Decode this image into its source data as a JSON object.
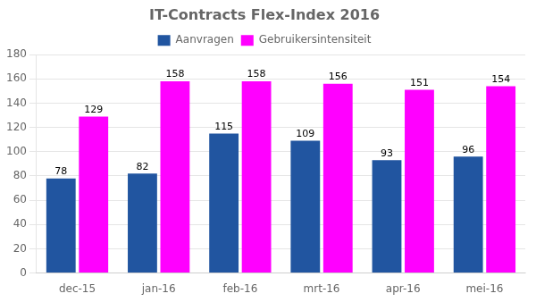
{
  "chart_data": {
    "type": "bar",
    "title": "IT-Contracts Flex-Index 2016",
    "categories": [
      "dec-15",
      "jan-16",
      "feb-16",
      "mrt-16",
      "apr-16",
      "mei-16"
    ],
    "series": [
      {
        "name": "Aanvragen",
        "color": "#2155A0",
        "values": [
          78,
          82,
          115,
          109,
          93,
          96
        ]
      },
      {
        "name": "Gebruikersintensiteit",
        "color": "#FF00FF",
        "values": [
          129,
          158,
          158,
          156,
          151,
          154
        ]
      }
    ],
    "ylim": [
      0,
      180
    ],
    "yticks": [
      0,
      20,
      40,
      60,
      80,
      100,
      120,
      140,
      160,
      180
    ],
    "grid": true,
    "legend": "top",
    "data_labels": true
  }
}
